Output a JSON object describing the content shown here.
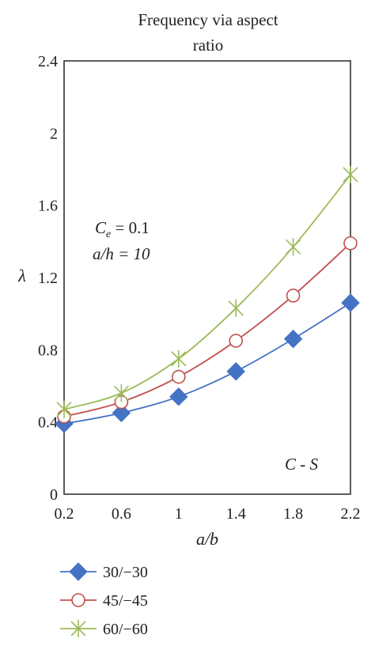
{
  "chart_data": {
    "type": "line",
    "title_lines": [
      "Frequency via aspect",
      "ratio"
    ],
    "xlabel": "a/b",
    "ylabel": "λ",
    "x": [
      0.2,
      0.6,
      1.0,
      1.4,
      1.8,
      2.2
    ],
    "x_tick_labels": [
      "0.2",
      "0.6",
      "1",
      "1.4",
      "1.8",
      "2.2"
    ],
    "y_tick_labels": [
      "0",
      "0.4",
      "0.8",
      "1.2",
      "1.6",
      "2",
      "2.4"
    ],
    "y_ticks": [
      0,
      0.4,
      0.8,
      1.2,
      1.6,
      2.0,
      2.4
    ],
    "xlim": [
      0.2,
      2.2
    ],
    "ylim": [
      0,
      2.4
    ],
    "grid": false,
    "legend_position": "bottom-left, below plot",
    "annotations": {
      "ce_prefix": "C",
      "ce_sub": "e",
      "ce_suffix": " = 0.1",
      "ah": "a/h = 10",
      "bc": "C - S"
    },
    "series": [
      {
        "name": "30/−30",
        "marker": "diamond",
        "color": "#4472c4",
        "values": [
          0.39,
          0.45,
          0.54,
          0.68,
          0.86,
          1.06
        ]
      },
      {
        "name": "45/−45",
        "marker": "circle",
        "color": "#c0504d",
        "values": [
          0.43,
          0.51,
          0.65,
          0.85,
          1.1,
          1.39
        ]
      },
      {
        "name": "60/−60",
        "marker": "star",
        "color": "#9bbb59",
        "values": [
          0.47,
          0.56,
          0.75,
          1.03,
          1.37,
          1.77
        ]
      }
    ]
  }
}
